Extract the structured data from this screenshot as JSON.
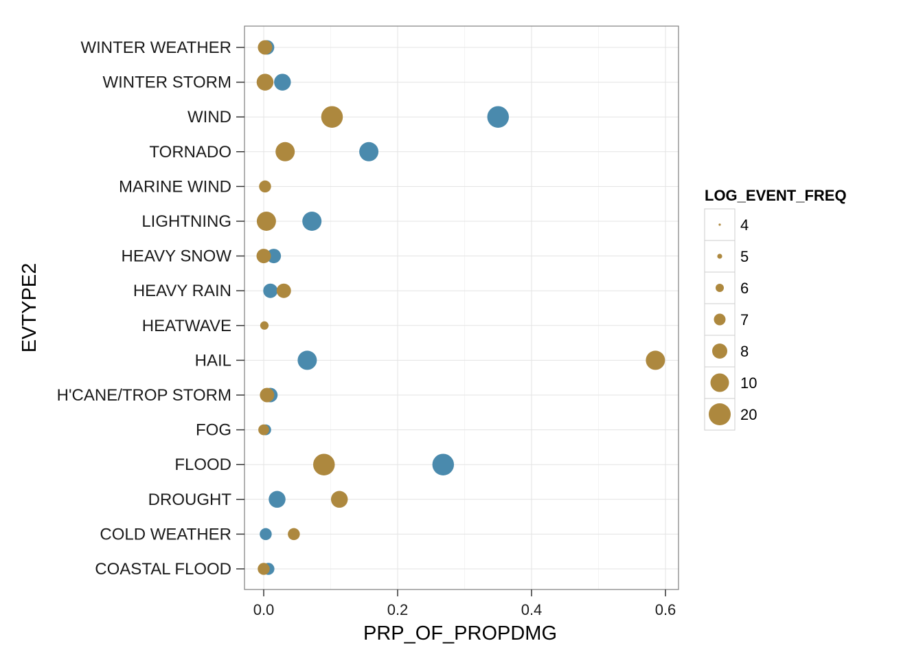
{
  "chart_data": {
    "type": "scatter",
    "xlabel": "PRP_OF_PROPDMG",
    "ylabel": "EVTYPE2",
    "xlim": [
      -0.03,
      0.62
    ],
    "x_ticks": [
      0.0,
      0.2,
      0.4,
      0.6
    ],
    "x_tick_labels": [
      "0.0",
      "0.2",
      "0.4",
      "0.6"
    ],
    "grid": true,
    "categories": [
      "WINTER WEATHER",
      "WINTER STORM",
      "WIND",
      "TORNADO",
      "MARINE WIND",
      "LIGHTNING",
      "HEAVY SNOW",
      "HEAVY RAIN",
      "HEATWAVE",
      "HAIL",
      "H'CANE/TROP STORM",
      "FOG",
      "FLOOD",
      "DROUGHT",
      "COLD WEATHER",
      "COASTAL FLOOD"
    ],
    "series": [
      {
        "color": "#4a8aad",
        "points": [
          {
            "category": "WINTER WEATHER",
            "x": 0.005,
            "size": 6
          },
          {
            "category": "WINTER STORM",
            "x": 0.028,
            "size": 7
          },
          {
            "category": "WIND",
            "x": 0.35,
            "size": 9
          },
          {
            "category": "TORNADO",
            "x": 0.157,
            "size": 8
          },
          {
            "category": "LIGHTNING",
            "x": 0.072,
            "size": 8
          },
          {
            "category": "HEAVY SNOW",
            "x": 0.015,
            "size": 6
          },
          {
            "category": "HEAVY RAIN",
            "x": 0.01,
            "size": 6
          },
          {
            "category": "HAIL",
            "x": 0.065,
            "size": 8
          },
          {
            "category": "H'CANE/TROP STORM",
            "x": 0.01,
            "size": 6
          },
          {
            "category": "FOG",
            "x": 0.003,
            "size": 4.5
          },
          {
            "category": "FLOOD",
            "x": 0.268,
            "size": 9
          },
          {
            "category": "DROUGHT",
            "x": 0.02,
            "size": 7
          },
          {
            "category": "COLD WEATHER",
            "x": 0.003,
            "size": 5
          },
          {
            "category": "COASTAL FLOOD",
            "x": 0.007,
            "size": 5
          }
        ]
      },
      {
        "color": "#ad883e",
        "points": [
          {
            "category": "WINTER WEATHER",
            "x": 0.002,
            "size": 6
          },
          {
            "category": "WINTER STORM",
            "x": 0.002,
            "size": 7
          },
          {
            "category": "WIND",
            "x": 0.102,
            "size": 9
          },
          {
            "category": "TORNADO",
            "x": 0.032,
            "size": 8
          },
          {
            "category": "MARINE WIND",
            "x": 0.002,
            "size": 5
          },
          {
            "category": "LIGHTNING",
            "x": 0.004,
            "size": 8
          },
          {
            "category": "HEAVY SNOW",
            "x": 0.0,
            "size": 6
          },
          {
            "category": "HEAVY RAIN",
            "x": 0.03,
            "size": 6
          },
          {
            "category": "HEATWAVE",
            "x": 0.001,
            "size": 3.5
          },
          {
            "category": "HAIL",
            "x": 0.585,
            "size": 8
          },
          {
            "category": "H'CANE/TROP STORM",
            "x": 0.005,
            "size": 6
          },
          {
            "category": "FOG",
            "x": 0.0,
            "size": 4.5
          },
          {
            "category": "FLOOD",
            "x": 0.09,
            "size": 9
          },
          {
            "category": "DROUGHT",
            "x": 0.113,
            "size": 7
          },
          {
            "category": "COLD WEATHER",
            "x": 0.045,
            "size": 5
          },
          {
            "category": "COASTAL FLOOD",
            "x": 0.0,
            "size": 5
          }
        ]
      }
    ],
    "legend": {
      "title": "LOG_EVENT_FREQ",
      "placement": "right",
      "color": "#ad883e",
      "entries": [
        {
          "label": "4",
          "size": 4
        },
        {
          "label": "5",
          "size": 5
        },
        {
          "label": "6",
          "size": 6
        },
        {
          "label": "7",
          "size": 7
        },
        {
          "label": "8",
          "size": 8
        },
        {
          "label": "10",
          "size": 10
        },
        {
          "label": "20",
          "size": 20
        }
      ]
    }
  }
}
